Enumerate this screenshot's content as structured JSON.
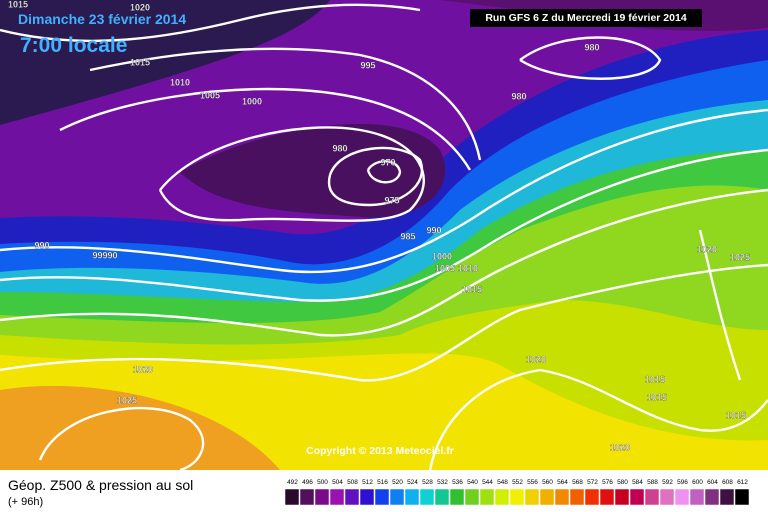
{
  "header": {
    "date": "Dimanche 23 février 2014",
    "time": "7:00 locale",
    "run": "Run GFS 6 Z du Mercredi 19 février 2014"
  },
  "isobar_labels": [
    1015,
    1020,
    1015,
    1010,
    1005,
    1000,
    995,
    980,
    980,
    980,
    970,
    975,
    985,
    990,
    990,
    99990,
    1000,
    1005,
    1010,
    1015,
    1020,
    1020,
    1025,
    1020,
    1025,
    1015,
    1015,
    1015,
    1020
  ],
  "copyright": "Copyright © 2013 Meteociel.fr",
  "legend": {
    "title": "Géop. Z500 & pression au sol",
    "lead_time": "(+ 96h)",
    "scale": [
      492,
      496,
      500,
      504,
      508,
      512,
      516,
      520,
      524,
      528,
      532,
      536,
      540,
      544,
      548,
      552,
      556,
      560,
      564,
      568,
      572,
      576,
      580,
      584,
      588,
      592,
      596,
      600,
      604,
      608,
      612
    ]
  }
}
